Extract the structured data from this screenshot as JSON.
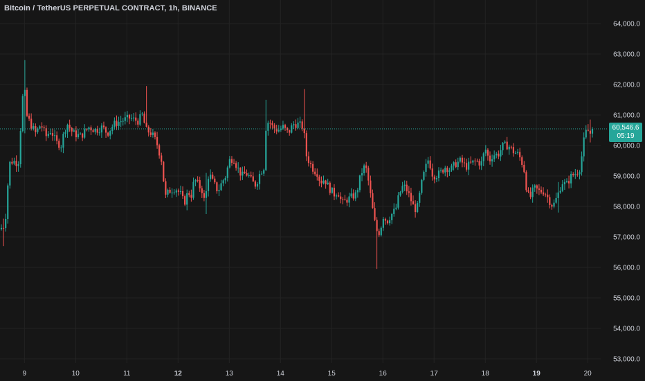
{
  "title": "Bitcoin / TetherUS PERPETUAL CONTRACT, 1h, BINANCE",
  "price_tag": {
    "price": "60,546.6",
    "countdown": "05:19"
  },
  "colors": {
    "background": "#161616",
    "up": "#26a69a",
    "down": "#ef5350",
    "grid": "#232323",
    "text": "#d1d4dc",
    "last_price_line": "#26a69a"
  },
  "chart_data": {
    "type": "candlestick",
    "title": "Bitcoin / TetherUS PERPETUAL CONTRACT, 1h, BINANCE",
    "interval": "1h",
    "exchange": "BINANCE",
    "last_price": 60546.6,
    "ylim": [
      52700,
      64500
    ],
    "yticks": [
      53000,
      54000,
      55000,
      56000,
      57000,
      58000,
      59000,
      60000,
      61000,
      62000,
      63000,
      64000
    ],
    "ytick_labels": [
      "53,000.0",
      "54,000.0",
      "55,000.0",
      "56,000.0",
      "57,000.0",
      "58,000.0",
      "59,000.0",
      "60,000.0",
      "61,000.0",
      "62,000.0",
      "63,000.0",
      "64,000.0"
    ],
    "xlim": [
      8.55,
      20.2
    ],
    "xticks": [
      {
        "value": 9,
        "label": "9",
        "bold": false
      },
      {
        "value": 10,
        "label": "10",
        "bold": false
      },
      {
        "value": 11,
        "label": "11",
        "bold": false
      },
      {
        "value": 12,
        "label": "12",
        "bold": true
      },
      {
        "value": 13,
        "label": "13",
        "bold": false
      },
      {
        "value": 14,
        "label": "14",
        "bold": false
      },
      {
        "value": 15,
        "label": "15",
        "bold": false
      },
      {
        "value": 16,
        "label": "16",
        "bold": false
      },
      {
        "value": 17,
        "label": "17",
        "bold": false
      },
      {
        "value": 18,
        "label": "18",
        "bold": false
      },
      {
        "value": 19,
        "label": "19",
        "bold": true
      },
      {
        "value": 20,
        "label": "20",
        "bold": false
      }
    ],
    "grid": true,
    "close_path": [
      [
        8.55,
        57300
      ],
      [
        8.62,
        57400
      ],
      [
        8.66,
        58300
      ],
      [
        8.7,
        59400
      ],
      [
        8.78,
        59500
      ],
      [
        8.88,
        59400
      ],
      [
        8.95,
        61200
      ],
      [
        8.99,
        62100
      ],
      [
        9.04,
        61000
      ],
      [
        9.12,
        60700
      ],
      [
        9.22,
        60400
      ],
      [
        9.32,
        60700
      ],
      [
        9.42,
        60300
      ],
      [
        9.52,
        60500
      ],
      [
        9.62,
        60100
      ],
      [
        9.72,
        60000
      ],
      [
        9.78,
        60500
      ],
      [
        9.84,
        60700
      ],
      [
        9.95,
        60400
      ],
      [
        10.1,
        60300
      ],
      [
        10.25,
        60600
      ],
      [
        10.4,
        60500
      ],
      [
        10.52,
        60600
      ],
      [
        10.62,
        60400
      ],
      [
        10.75,
        60700
      ],
      [
        10.88,
        60800
      ],
      [
        11.05,
        60900
      ],
      [
        11.22,
        60800
      ],
      [
        11.3,
        61000
      ],
      [
        11.38,
        60500
      ],
      [
        11.48,
        60400
      ],
      [
        11.58,
        60100
      ],
      [
        11.68,
        59500
      ],
      [
        11.75,
        58300
      ],
      [
        11.82,
        58500
      ],
      [
        11.95,
        58600
      ],
      [
        12.05,
        58400
      ],
      [
        12.12,
        58100
      ],
      [
        12.2,
        58500
      ],
      [
        12.25,
        58300
      ],
      [
        12.32,
        58900
      ],
      [
        12.4,
        58700
      ],
      [
        12.48,
        58500
      ],
      [
        12.52,
        58100
      ],
      [
        12.6,
        59100
      ],
      [
        12.68,
        58800
      ],
      [
        12.78,
        58500
      ],
      [
        12.86,
        58800
      ],
      [
        12.93,
        59000
      ],
      [
        13.0,
        59500
      ],
      [
        13.08,
        59600
      ],
      [
        13.15,
        59300
      ],
      [
        13.25,
        59000
      ],
      [
        13.32,
        59100
      ],
      [
        13.38,
        59000
      ],
      [
        13.45,
        58800
      ],
      [
        13.52,
        58700
      ],
      [
        13.6,
        59100
      ],
      [
        13.68,
        59300
      ],
      [
        13.72,
        60700
      ],
      [
        13.78,
        60800
      ],
      [
        13.85,
        60600
      ],
      [
        13.95,
        60500
      ],
      [
        14.05,
        60600
      ],
      [
        14.15,
        60400
      ],
      [
        14.25,
        60700
      ],
      [
        14.35,
        60700
      ],
      [
        14.45,
        60600
      ],
      [
        14.5,
        59700
      ],
      [
        14.58,
        59400
      ],
      [
        14.65,
        59200
      ],
      [
        14.72,
        59100
      ],
      [
        14.78,
        58800
      ],
      [
        14.86,
        58900
      ],
      [
        14.95,
        58600
      ],
      [
        15.05,
        58400
      ],
      [
        15.12,
        58500
      ],
      [
        15.2,
        58100
      ],
      [
        15.28,
        58200
      ],
      [
        15.38,
        58300
      ],
      [
        15.48,
        58400
      ],
      [
        15.55,
        58900
      ],
      [
        15.62,
        59300
      ],
      [
        15.68,
        59200
      ],
      [
        15.72,
        58800
      ],
      [
        15.8,
        57900
      ],
      [
        15.85,
        57400
      ],
      [
        15.9,
        57100
      ],
      [
        15.95,
        57200
      ],
      [
        16.0,
        57700
      ],
      [
        16.08,
        57500
      ],
      [
        16.15,
        57700
      ],
      [
        16.25,
        57900
      ],
      [
        16.32,
        58400
      ],
      [
        16.4,
        58700
      ],
      [
        16.48,
        58500
      ],
      [
        16.55,
        58200
      ],
      [
        16.62,
        57900
      ],
      [
        16.68,
        58000
      ],
      [
        16.75,
        58700
      ],
      [
        16.82,
        59200
      ],
      [
        16.9,
        59600
      ],
      [
        16.95,
        59100
      ],
      [
        17.02,
        59000
      ],
      [
        17.12,
        59100
      ],
      [
        17.22,
        59300
      ],
      [
        17.32,
        59200
      ],
      [
        17.42,
        59400
      ],
      [
        17.52,
        59500
      ],
      [
        17.62,
        59300
      ],
      [
        17.72,
        59400
      ],
      [
        17.82,
        59500
      ],
      [
        17.92,
        59400
      ],
      [
        18.0,
        59900
      ],
      [
        18.08,
        59500
      ],
      [
        18.15,
        59700
      ],
      [
        18.25,
        59700
      ],
      [
        18.35,
        60000
      ],
      [
        18.45,
        60000
      ],
      [
        18.55,
        59800
      ],
      [
        18.65,
        59700
      ],
      [
        18.75,
        59300
      ],
      [
        18.82,
        58400
      ],
      [
        18.88,
        58300
      ],
      [
        18.95,
        58600
      ],
      [
        19.05,
        58500
      ],
      [
        19.15,
        58500
      ],
      [
        19.25,
        58200
      ],
      [
        19.32,
        58000
      ],
      [
        19.4,
        58300
      ],
      [
        19.5,
        58800
      ],
      [
        19.58,
        58700
      ],
      [
        19.68,
        59000
      ],
      [
        19.78,
        59100
      ],
      [
        19.86,
        59300
      ],
      [
        19.9,
        59900
      ],
      [
        19.95,
        60400
      ],
      [
        20.0,
        60500
      ],
      [
        20.05,
        60400
      ],
      [
        20.12,
        60550
      ]
    ],
    "big_wicks": [
      {
        "x": 8.6,
        "high": 57600,
        "low": 56700
      },
      {
        "x": 9.0,
        "high": 62800,
        "low": 60400
      },
      {
        "x": 11.4,
        "high": 61950,
        "low": 60600
      },
      {
        "x": 12.55,
        "high": 59100,
        "low": 57750
      },
      {
        "x": 13.7,
        "high": 61500,
        "low": 59400
      },
      {
        "x": 14.48,
        "high": 61850,
        "low": 60300
      },
      {
        "x": 15.88,
        "high": 57300,
        "low": 55950
      },
      {
        "x": 19.42,
        "high": 58800,
        "low": 57800
      },
      {
        "x": 20.06,
        "high": 60850,
        "low": 60100
      }
    ]
  }
}
